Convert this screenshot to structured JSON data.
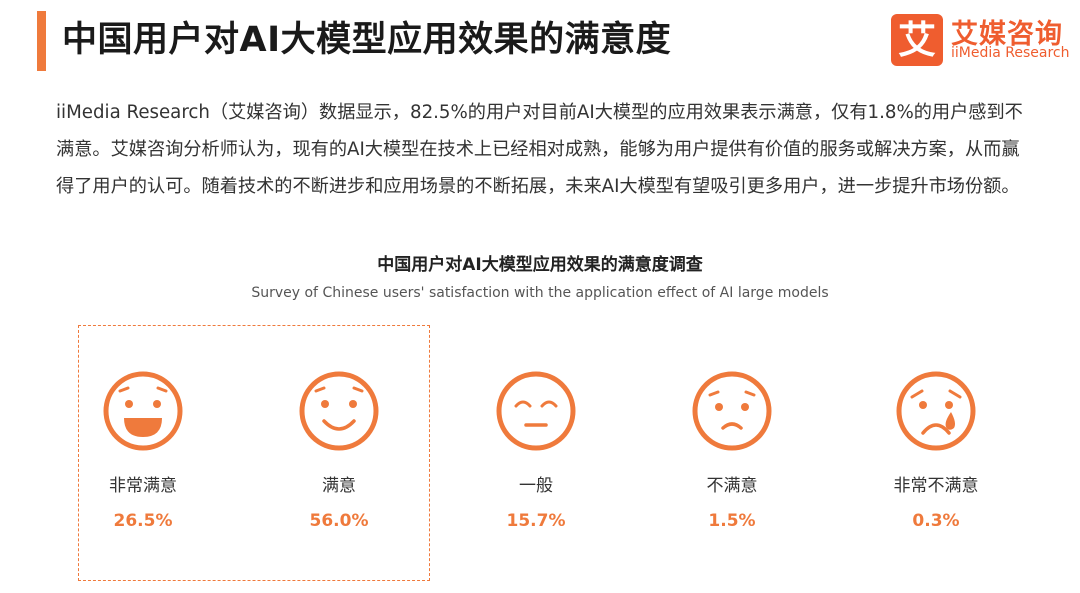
{
  "header": {
    "title": "中国用户对AI大模型应用效果的满意度",
    "logo_mark": "艾",
    "logo_cn": "艾媒咨询",
    "logo_en": "iiMedia Research"
  },
  "intro": "iiMedia Research（艾媒咨询）数据显示，82.5%的用户对目前AI大模型的应用效果表示满意，仅有1.8%的用户感到不满意。艾媒咨询分析师认为，现有的AI大模型在技术上已经相对成熟，能够为用户提供有价值的服务或解决方案，从而赢得了用户的认可。随着技术的不断进步和应用场景的不断拓展，未来AI大模型有望吸引更多用户，进一步提升市场份额。",
  "colors": {
    "accent": "#ef7a3c",
    "logo": "#ef5d2f",
    "text": "#333333"
  },
  "chart_data": {
    "type": "table",
    "title": "中国用户对AI大模型应用效果的满意度调查",
    "subtitle": "Survey of Chinese users' satisfaction with the application effect of AI large models",
    "categories": [
      "非常满意",
      "满意",
      "一般",
      "不满意",
      "非常不满意"
    ],
    "values": [
      26.5,
      56.0,
      15.7,
      1.5,
      0.3
    ],
    "value_labels": [
      "26.5%",
      "56.0%",
      "15.7%",
      "1.5%",
      "0.3%"
    ],
    "icons": [
      "very-happy-face-icon",
      "happy-face-icon",
      "neutral-face-icon",
      "unhappy-face-icon",
      "crying-face-icon"
    ],
    "highlighted": [
      "非常满意",
      "满意"
    ]
  }
}
